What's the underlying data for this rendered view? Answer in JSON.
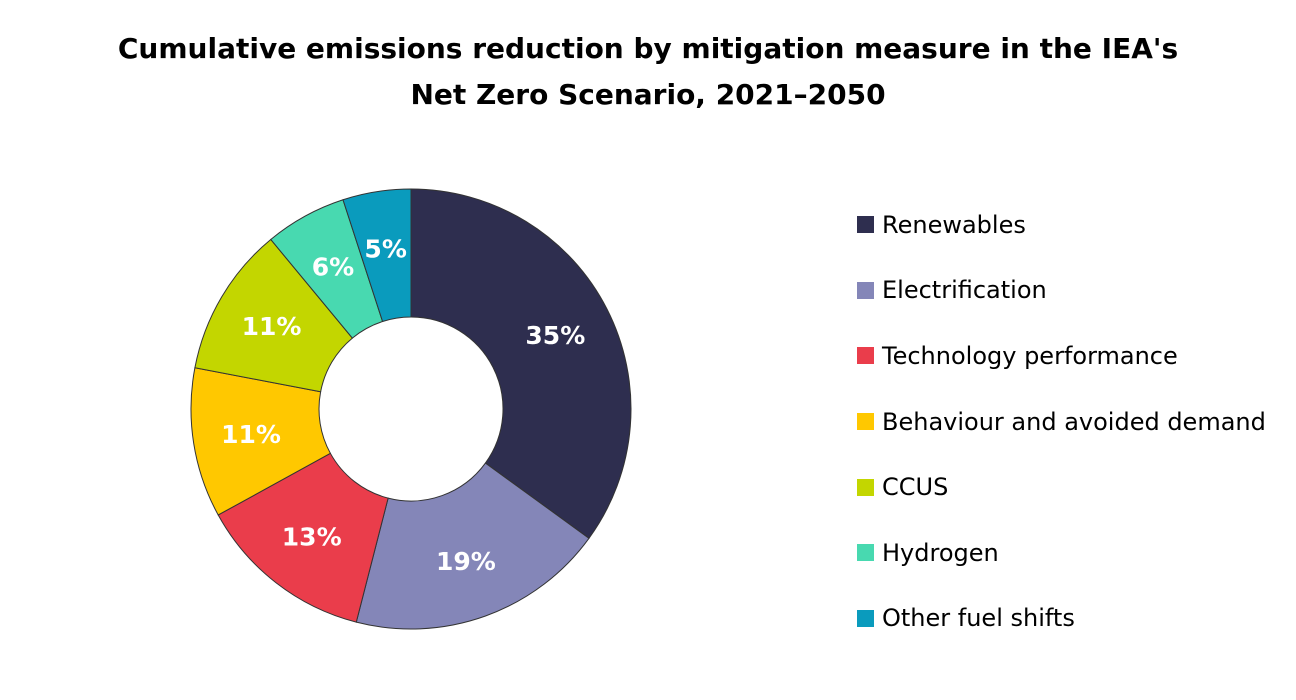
{
  "chart_data": {
    "type": "pie",
    "donut": true,
    "title_lines": [
      "Cumulative emissions reduction by mitigation measure in the IEA's",
      "Net Zero Scenario, 2021–2050"
    ],
    "legend_position": "right",
    "unit": "%",
    "slices": [
      {
        "label": "Renewables",
        "value": 35,
        "data_label": "35%",
        "color": "#2e2e4f"
      },
      {
        "label": "Electrification",
        "value": 19,
        "data_label": "19%",
        "color": "#8486b8"
      },
      {
        "label": "Technology performance",
        "value": 13,
        "data_label": "13%",
        "color": "#ea3d4b"
      },
      {
        "label": "Behaviour and avoided demand",
        "value": 11,
        "data_label": "11%",
        "color": "#ffc800"
      },
      {
        "label": "CCUS",
        "value": 11,
        "data_label": "11%",
        "color": "#c3d600"
      },
      {
        "label": "Hydrogen",
        "value": 6,
        "data_label": "6%",
        "color": "#48d9b0"
      },
      {
        "label": "Other fuel shifts",
        "value": 5,
        "data_label": "5%",
        "color": "#0a9bbd"
      }
    ],
    "data_label_color": "#ffffff",
    "slice_border_color": "#333333"
  }
}
